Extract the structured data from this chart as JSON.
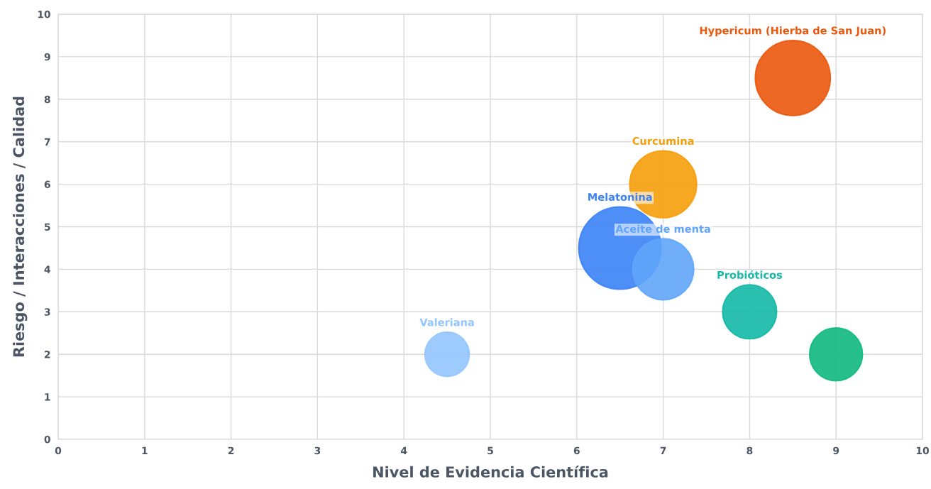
{
  "chart_data": {
    "type": "bubble",
    "xlabel": "Nivel de Evidencia Científica",
    "ylabel": "Riesgo / Interacciones / Calidad",
    "xlim": [
      0,
      10
    ],
    "ylim": [
      0,
      10
    ],
    "xticks": [
      0,
      1,
      2,
      3,
      4,
      5,
      6,
      7,
      8,
      9,
      10
    ],
    "yticks": [
      0,
      1,
      2,
      3,
      4,
      5,
      6,
      7,
      8,
      9,
      10
    ],
    "grid": true,
    "legend": false,
    "series": [
      {
        "name": "Valeriana",
        "color": "#93c5fd",
        "x": [
          4.5
        ],
        "values": [
          2
        ],
        "sizes": [
          0.29
        ]
      },
      {
        "name": "Melatonina",
        "color": "#3b82f6",
        "x": [
          6.5
        ],
        "values": [
          4.5
        ],
        "sizes": [
          1
        ]
      },
      {
        "name": "Aceite de menta",
        "color": "#60a5fa",
        "x": [
          7
        ],
        "values": [
          4
        ],
        "sizes": [
          0.55
        ]
      },
      {
        "name": "Curcumina",
        "color": "#f59e0b",
        "x": [
          7
        ],
        "values": [
          6
        ],
        "sizes": [
          0.66
        ]
      },
      {
        "name": "Probióticos",
        "color": "#14b8a6",
        "x": [
          8
        ],
        "values": [
          3
        ],
        "sizes": [
          0.43
        ]
      },
      {
        "color": "#10b981",
        "x": [
          9
        ],
        "values": [
          2
        ],
        "sizes": [
          0.41
        ]
      },
      {
        "name": "Hypericum (Hierba de San Juan)",
        "color": "#ea580c",
        "x": [
          8.5
        ],
        "values": [
          8.5
        ],
        "sizes": [
          0.83
        ]
      }
    ]
  }
}
